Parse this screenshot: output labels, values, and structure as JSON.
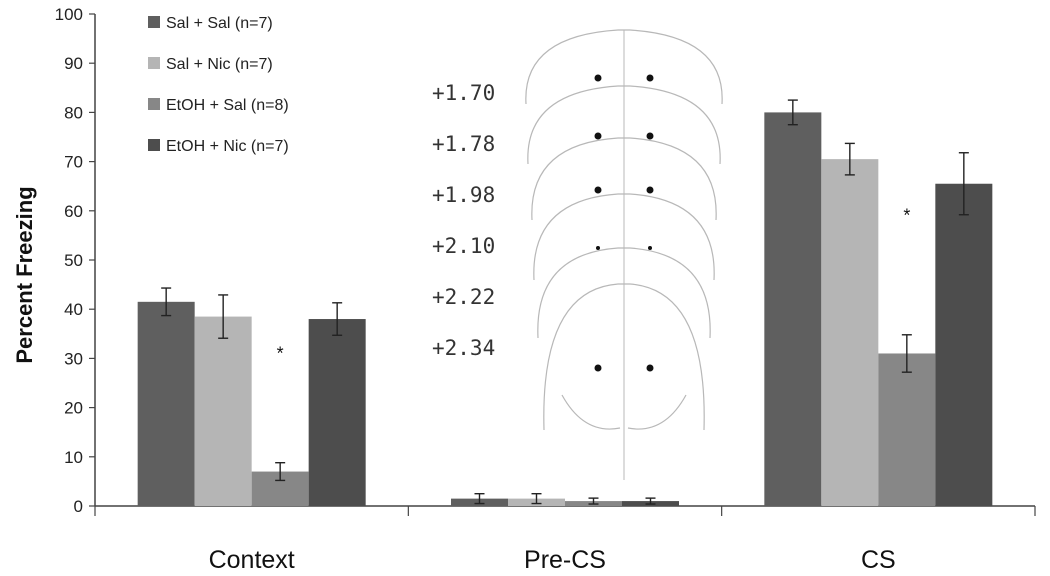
{
  "chart_data": {
    "type": "bar",
    "title": "",
    "xlabel": "",
    "ylabel": "Percent Freezing",
    "ylim": [
      0,
      100
    ],
    "yticks": [
      0,
      10,
      20,
      30,
      40,
      50,
      60,
      70,
      80,
      90,
      100
    ],
    "categories": [
      "Context",
      "Pre-CS",
      "CS"
    ],
    "series": [
      {
        "name": "Sal + Sal (n=7)",
        "color": "#5f5f5f",
        "values": [
          41.5,
          1.5,
          80
        ],
        "errors": [
          2.8,
          1.0,
          2.5
        ]
      },
      {
        "name": "Sal + Nic  (n=7)",
        "color": "#b5b5b5",
        "values": [
          38.5,
          1.5,
          70.5
        ],
        "errors": [
          4.4,
          1.0,
          3.2
        ]
      },
      {
        "name": "EtOH + Sal (n=8)",
        "color": "#878787",
        "values": [
          7,
          1,
          31
        ],
        "errors": [
          1.8,
          0.6,
          3.8
        ]
      },
      {
        "name": "EtOH +   Nic (n=7)",
        "color": "#4d4d4d",
        "values": [
          38,
          1,
          65.5
        ],
        "errors": [
          3.3,
          0.6,
          6.3
        ]
      }
    ],
    "significance": [
      {
        "category": "Context",
        "series": 2,
        "label": "*"
      },
      {
        "category": "CS",
        "series": 2,
        "label": "*"
      }
    ],
    "legend_position": "top-left",
    "inset": {
      "description": "coronal brain section diagrams",
      "coordinates": [
        "+1.70",
        "+1.78",
        "+1.98",
        "+2.10",
        "+2.22",
        "+2.34"
      ]
    }
  }
}
